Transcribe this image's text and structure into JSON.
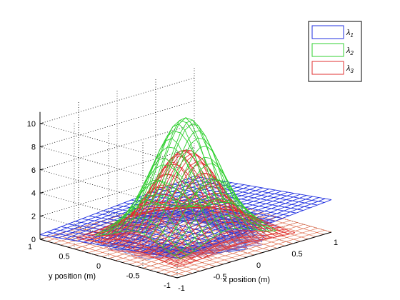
{
  "chart_data": {
    "type": "surface3d",
    "xlabel": "x position (m)",
    "ylabel": "y position (m)",
    "zlabel": "",
    "xlim": [
      -1,
      1
    ],
    "ylim": [
      -1,
      1
    ],
    "zlim": [
      0,
      11
    ],
    "x_ticks": [
      "-1",
      "-0.5",
      "0",
      "0.5",
      "1"
    ],
    "y_ticks": [
      "-1",
      "-0.5",
      "0",
      "0.5",
      "1"
    ],
    "z_ticks": [
      "0",
      "2",
      "4",
      "6",
      "8",
      "10"
    ],
    "grid": true,
    "legend_position": "top-right",
    "series": [
      {
        "name": "λ1",
        "label_base": "λ",
        "label_sub": "1",
        "color": "#2030e0",
        "shape": "tilted plane",
        "z_at_origin": 1.6,
        "peak": 1.6
      },
      {
        "name": "λ2",
        "label_base": "λ",
        "label_sub": "2",
        "color": "#30d030",
        "shape": "gaussian peak",
        "peak": 10.2
      },
      {
        "name": "λ3",
        "label_base": "λ",
        "label_sub": "3",
        "color": "#e03030",
        "shape": "gaussian peak",
        "peak": 7.4
      }
    ]
  }
}
